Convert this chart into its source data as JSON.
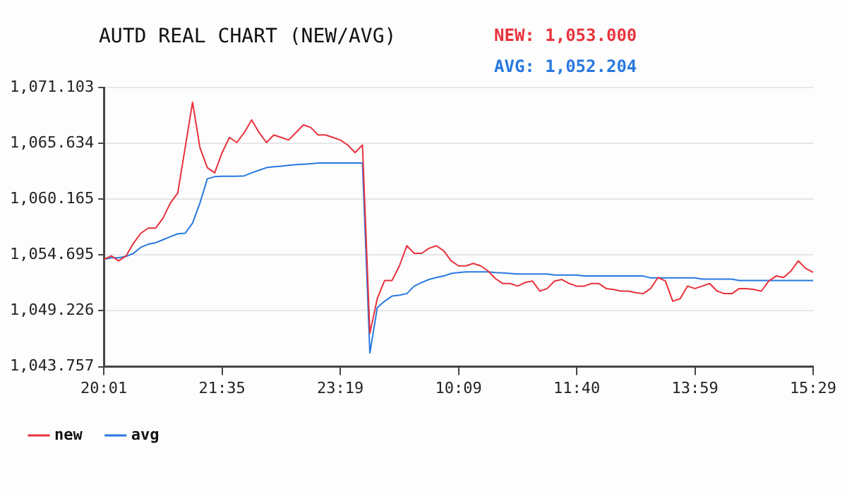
{
  "chart_data": {
    "type": "line",
    "title": "AUTD REAL CHART (NEW/AVG)",
    "annotations": [
      "NEW: 1,053.000",
      "AVG: 1,052.204"
    ],
    "categories": [
      "20:01",
      null,
      null,
      null,
      null,
      null,
      null,
      null,
      null,
      null,
      null,
      null,
      null,
      null,
      null,
      null,
      "21:35",
      null,
      null,
      null,
      null,
      null,
      null,
      null,
      null,
      null,
      null,
      null,
      null,
      null,
      null,
      null,
      "23:19",
      null,
      null,
      null,
      null,
      null,
      null,
      null,
      null,
      null,
      null,
      null,
      null,
      null,
      null,
      null,
      "10:09",
      null,
      null,
      null,
      null,
      null,
      null,
      null,
      null,
      null,
      null,
      null,
      null,
      null,
      null,
      null,
      "11:40",
      null,
      null,
      null,
      null,
      null,
      null,
      null,
      null,
      null,
      null,
      null,
      null,
      null,
      null,
      null,
      "13:59",
      null,
      null,
      null,
      null,
      null,
      null,
      null,
      null,
      null,
      null,
      null,
      null,
      null,
      null,
      null,
      "15:29"
    ],
    "series": [
      {
        "name": "new",
        "color": "#e8323c",
        "values": [
          1054.27,
          1054.61,
          1054.12,
          1054.61,
          1055.85,
          1056.83,
          1057.33,
          1057.33,
          1058.31,
          1059.79,
          1060.78,
          1065.22,
          1069.66,
          1065.22,
          1063.25,
          1062.75,
          1064.73,
          1066.21,
          1065.71,
          1066.7,
          1067.93,
          1066.7,
          1065.71,
          1066.45,
          1066.21,
          1065.96,
          1066.7,
          1067.44,
          1067.19,
          1066.45,
          1066.45,
          1066.21,
          1065.96,
          1065.47,
          1064.73,
          1065.47,
          1047.02,
          1050.42,
          1052.2,
          1052.2,
          1053.63,
          1055.6,
          1054.86,
          1054.86,
          1055.35,
          1055.6,
          1055.11,
          1054.12,
          1053.63,
          1053.63,
          1053.87,
          1053.63,
          1053.13,
          1052.39,
          1051.9,
          1051.9,
          1051.65,
          1052.0,
          1052.15,
          1051.16,
          1051.41,
          1052.15,
          1052.3,
          1051.9,
          1051.65,
          1051.65,
          1051.9,
          1051.9,
          1051.41,
          1051.31,
          1051.16,
          1051.16,
          1051.01,
          1050.91,
          1051.41,
          1052.49,
          1052.15,
          1050.17,
          1050.42,
          1051.65,
          1051.41,
          1051.65,
          1051.9,
          1051.16,
          1050.91,
          1050.91,
          1051.41,
          1051.41,
          1051.31,
          1051.16,
          1052.15,
          1052.64,
          1052.49,
          1053.13,
          1054.12,
          1053.38,
          1053.0
        ]
      },
      {
        "name": "avg",
        "color": "#2878e0",
        "values": [
          1054.27,
          1054.42,
          1054.42,
          1054.56,
          1054.86,
          1055.45,
          1055.75,
          1055.9,
          1056.19,
          1056.49,
          1056.78,
          1056.83,
          1057.82,
          1059.79,
          1062.16,
          1062.37,
          1062.41,
          1062.41,
          1062.41,
          1062.45,
          1062.75,
          1063.0,
          1063.25,
          1063.34,
          1063.4,
          1063.49,
          1063.55,
          1063.59,
          1063.64,
          1063.7,
          1063.7,
          1063.7,
          1063.7,
          1063.7,
          1063.7,
          1063.7,
          1045.09,
          1049.53,
          1050.17,
          1050.67,
          1050.76,
          1050.91,
          1051.65,
          1052.0,
          1052.3,
          1052.49,
          1052.64,
          1052.89,
          1052.98,
          1053.04,
          1053.04,
          1053.04,
          1053.04,
          1052.98,
          1052.94,
          1052.89,
          1052.83,
          1052.83,
          1052.83,
          1052.83,
          1052.83,
          1052.74,
          1052.74,
          1052.74,
          1052.74,
          1052.64,
          1052.64,
          1052.64,
          1052.64,
          1052.64,
          1052.64,
          1052.64,
          1052.64,
          1052.64,
          1052.45,
          1052.45,
          1052.45,
          1052.45,
          1052.45,
          1052.45,
          1052.45,
          1052.34,
          1052.34,
          1052.34,
          1052.34,
          1052.34,
          1052.2,
          1052.2,
          1052.2,
          1052.2,
          1052.2,
          1052.2,
          1052.2,
          1052.2,
          1052.2,
          1052.2,
          1052.2
        ]
      }
    ],
    "ylim": [
      1043.757,
      1071.103
    ],
    "yticks": [
      {
        "value": 1043.757,
        "label": "1,043.757"
      },
      {
        "value": 1049.226,
        "label": "1,049.226"
      },
      {
        "value": 1054.695,
        "label": "1,054.695"
      },
      {
        "value": 1060.165,
        "label": "1,060.165"
      },
      {
        "value": 1065.634,
        "label": "1,065.634"
      },
      {
        "value": 1071.103,
        "label": "1,071.103"
      }
    ],
    "grid": "y",
    "legend": "bottom left",
    "marker": "none",
    "line_style": "solid"
  }
}
